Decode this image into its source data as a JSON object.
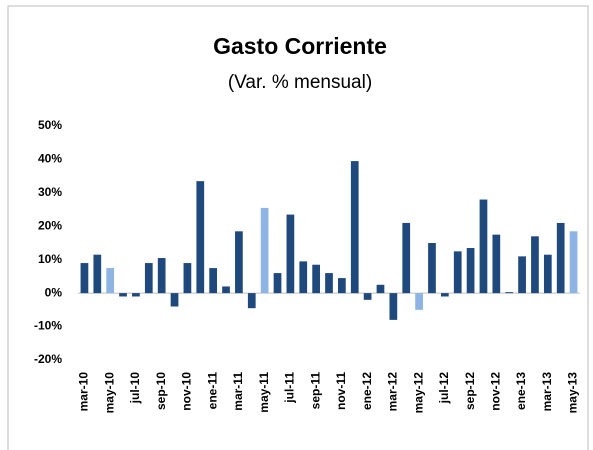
{
  "chart_data": {
    "type": "bar",
    "title": "Gasto Corriente",
    "subtitle": "(Var. % mensual)",
    "categories": [
      "mar-10",
      null,
      "may-10",
      null,
      "jul-10",
      null,
      "sep-10",
      null,
      "nov-10",
      null,
      "ene-11",
      null,
      "mar-11",
      null,
      "may-11",
      null,
      "jul-11",
      null,
      "sep-11",
      null,
      "nov-11",
      null,
      "ene-12",
      null,
      "mar-12",
      null,
      "may-12",
      null,
      "jul-12",
      null,
      "sep-12",
      null,
      "nov-12",
      null,
      "ene-13",
      null,
      "mar-13",
      null,
      "may-13"
    ],
    "values": [
      9,
      11.5,
      7.5,
      -1,
      -1,
      9,
      10.5,
      -4,
      9,
      33.5,
      7.5,
      2,
      18.5,
      -4.5,
      25.5,
      6,
      23.5,
      9.5,
      8.5,
      6,
      4.5,
      39.5,
      -2,
      2.5,
      -8,
      21,
      -5,
      15,
      -1,
      12.5,
      13.5,
      28,
      17.5,
      0.3,
      11,
      17,
      11.5,
      21,
      18.5
    ],
    "colors": [
      "#1f497d",
      "#1f497d",
      "#8db4e2",
      "#1f497d",
      "#1f497d",
      "#1f497d",
      "#1f497d",
      "#1f497d",
      "#1f497d",
      "#1f497d",
      "#1f497d",
      "#1f497d",
      "#1f497d",
      "#1f497d",
      "#8db4e2",
      "#1f497d",
      "#1f497d",
      "#1f497d",
      "#1f497d",
      "#1f497d",
      "#1f497d",
      "#1f497d",
      "#1f497d",
      "#1f497d",
      "#1f497d",
      "#1f497d",
      "#8db4e2",
      "#1f497d",
      "#1f497d",
      "#1f497d",
      "#1f497d",
      "#1f497d",
      "#1f497d",
      "#1f497d",
      "#1f497d",
      "#1f497d",
      "#1f497d",
      "#1f497d",
      "#8db4e2"
    ],
    "ylim": [
      -20,
      50
    ],
    "yticks": [
      {
        "value": -20,
        "label": "-20%"
      },
      {
        "value": -10,
        "label": "-10%"
      },
      {
        "value": 0,
        "label": "0%"
      },
      {
        "value": 10,
        "label": "10%"
      },
      {
        "value": 20,
        "label": "20%"
      },
      {
        "value": 30,
        "label": "30%"
      },
      {
        "value": 40,
        "label": "40%"
      },
      {
        "value": 50,
        "label": "50%"
      }
    ],
    "grid": false
  }
}
